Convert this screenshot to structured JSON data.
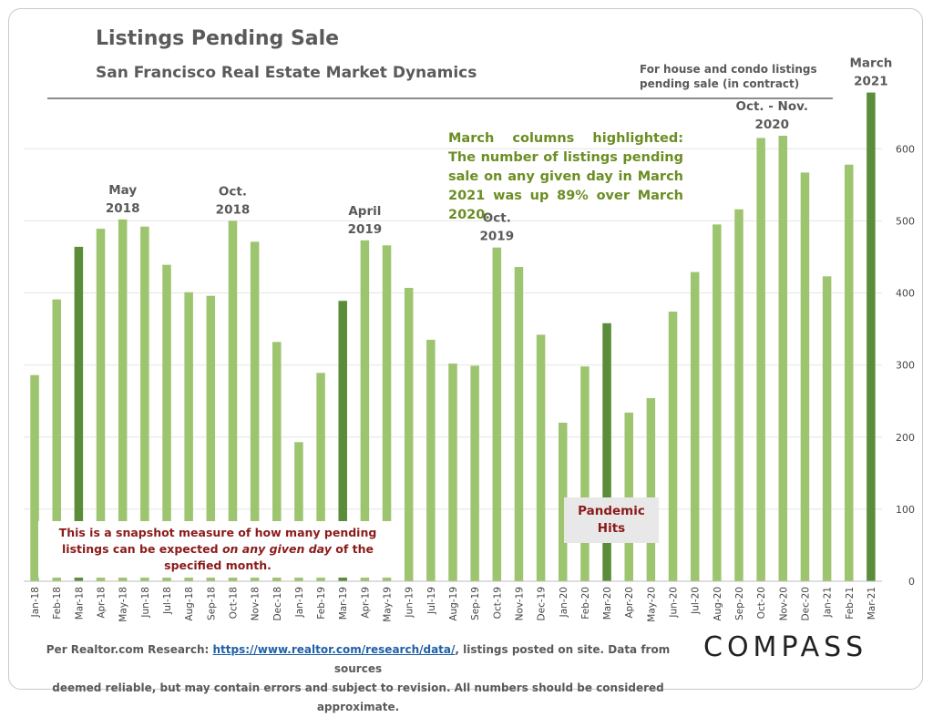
{
  "header": {
    "title": "Listings Pending Sale",
    "subtitle": "San Francisco Real Estate Market Dynamics",
    "note": "For house and condo listings\npending sale (in contract)"
  },
  "notes": {
    "highlight": "March columns highlighted: The number of listings pending sale on any given day in March 2021 was up 89% over March 2020.",
    "snapshot_pre": "This is a snapshot measure of how many pending listings can be expected ",
    "snapshot_em": "on any given day",
    "snapshot_post": " of the specified month.",
    "pandemic": "Pandemic\nHits"
  },
  "footer": {
    "line1_pre": "Per Realtor.com Research:  ",
    "link": "https://www.realtor.com/research/data/",
    "line1_post": ", listings posted on site. Data from sources",
    "line2": "deemed reliable, but may contain errors and subject to revision. All numbers should be considered approximate."
  },
  "brand": {
    "logo": "COMPASS"
  },
  "colors": {
    "regular": "#9dc46e",
    "highlight": "#5b8c3a",
    "grid": "#e4e4e4"
  },
  "chart_data": {
    "type": "bar",
    "categories": [
      "Jan-18",
      "Feb-18",
      "Mar-18",
      "Apr-18",
      "May-18",
      "Jun-18",
      "Jul-18",
      "Aug-18",
      "Sep-18",
      "Oct-18",
      "Nov-18",
      "Dec-18",
      "Jan-19",
      "Feb-19",
      "Mar-19",
      "Apr-19",
      "May-19",
      "Jun-19",
      "Jul-19",
      "Aug-19",
      "Sep-19",
      "Oct-19",
      "Nov-19",
      "Dec-19",
      "Jan-20",
      "Feb-20",
      "Mar-20",
      "Apr-20",
      "May-20",
      "Jun-20",
      "Jul-20",
      "Aug-20",
      "Sep-20",
      "Oct-20",
      "Nov-20",
      "Dec-20",
      "Jan-21",
      "Feb-21",
      "Mar-21"
    ],
    "values": [
      286,
      391,
      464,
      489,
      502,
      492,
      439,
      401,
      396,
      500,
      471,
      332,
      193,
      289,
      389,
      473,
      466,
      407,
      335,
      302,
      299,
      463,
      436,
      342,
      220,
      298,
      358,
      234,
      254,
      374,
      429,
      495,
      516,
      615,
      618,
      567,
      423,
      578,
      678
    ],
    "highlighted": [
      "Mar-18",
      "Mar-19",
      "Mar-20",
      "Mar-21"
    ],
    "ylim": [
      0,
      680
    ],
    "yticks": [
      0,
      100,
      200,
      300,
      400,
      500,
      600
    ],
    "y_axis_side": "right",
    "grid": true,
    "annotations": [
      {
        "category": "May-18",
        "lines": [
          "May",
          "2018"
        ]
      },
      {
        "category": "Oct-18",
        "lines": [
          "Oct.",
          "2018"
        ]
      },
      {
        "category": "Apr-19",
        "lines": [
          "April",
          "2019"
        ]
      },
      {
        "category": "Oct-19",
        "lines": [
          "Oct.",
          "2019"
        ]
      },
      {
        "category": "Oct-20",
        "lines": [
          "Oct. - Nov.",
          "2020"
        ],
        "span_to": "Nov-20"
      },
      {
        "category": "Mar-21",
        "lines": [
          "March",
          "2021"
        ]
      }
    ]
  }
}
